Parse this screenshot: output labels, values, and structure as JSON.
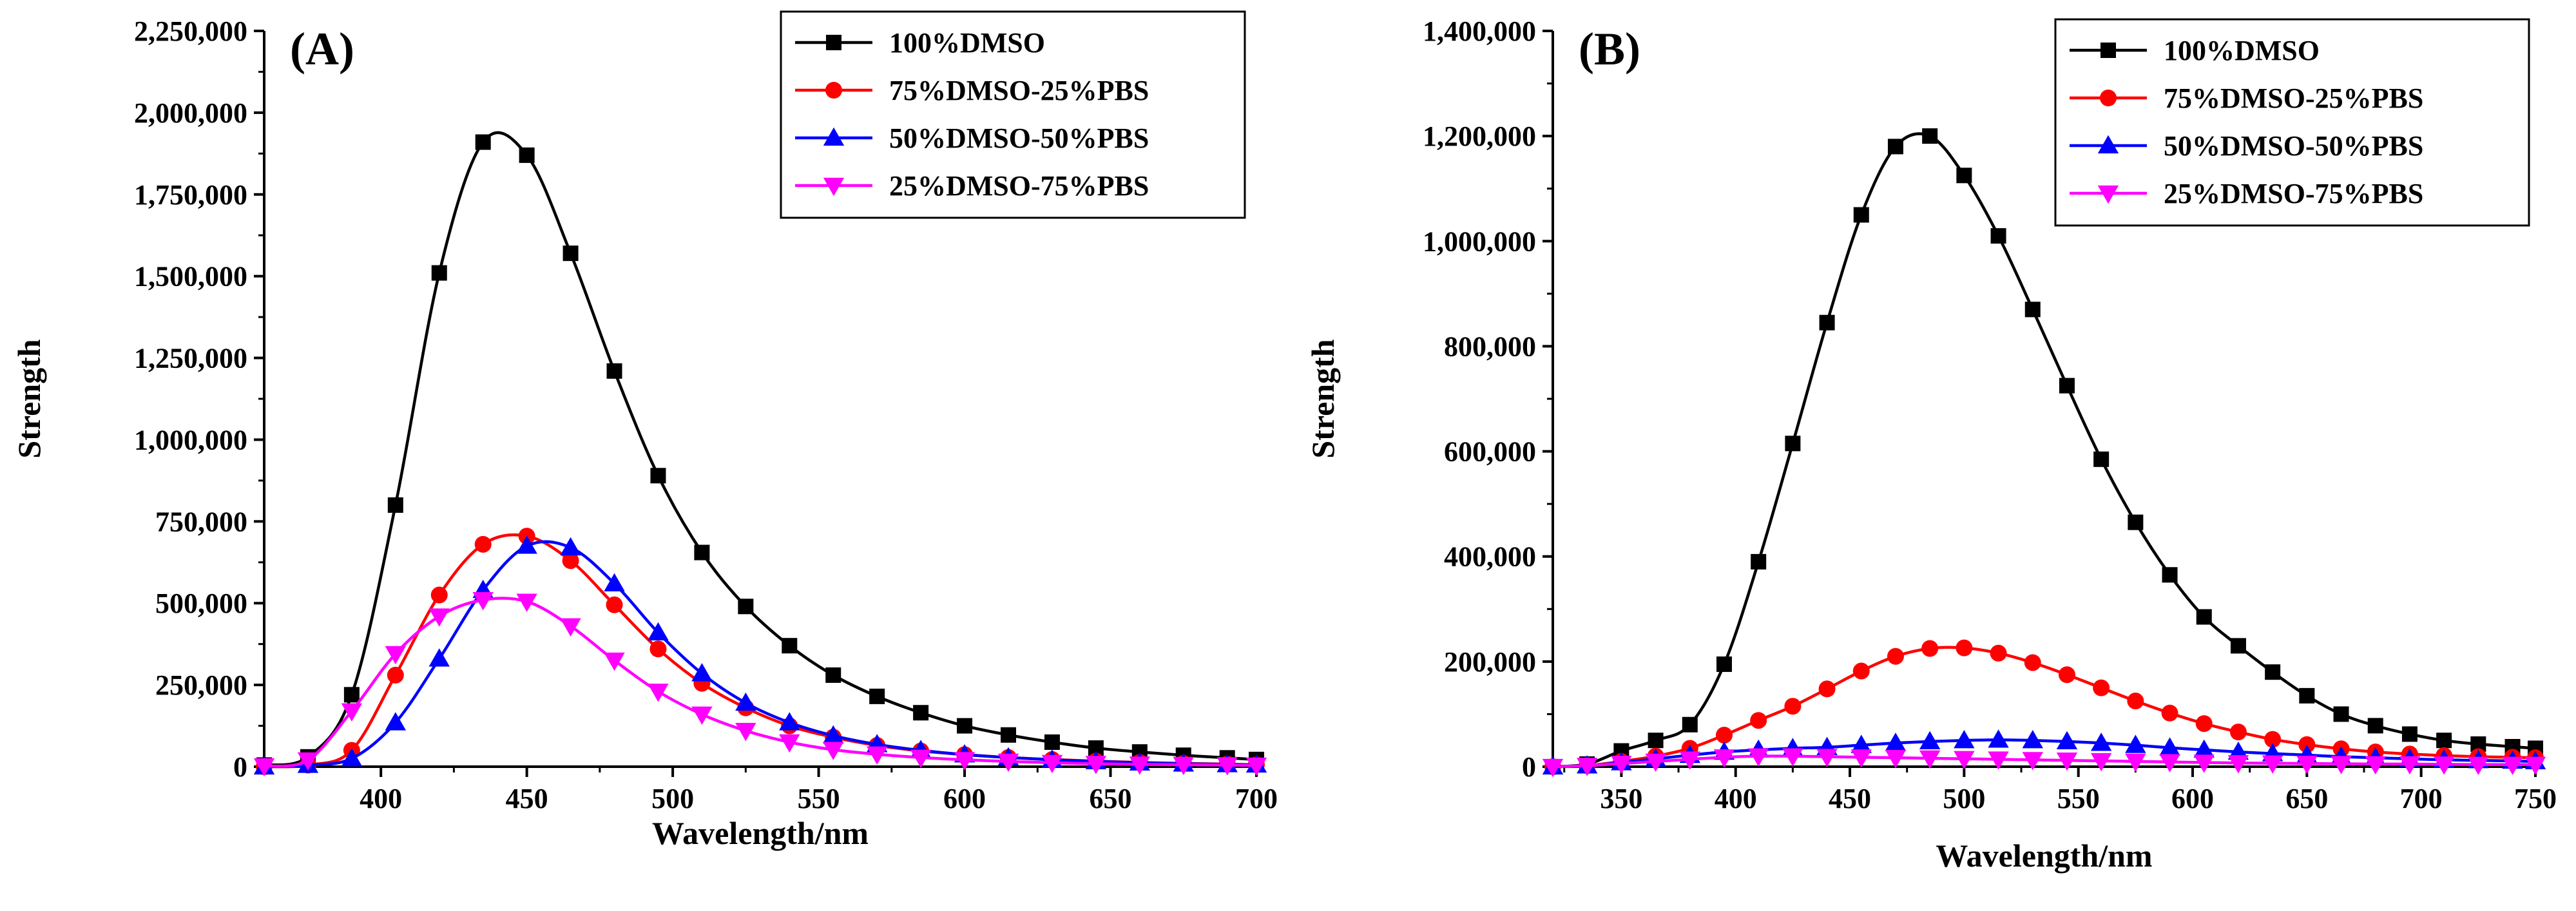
{
  "chart_data": [
    {
      "type": "line",
      "panel": "(A)",
      "xlabel": "Wavelength/nm",
      "ylabel": "Strength",
      "xlim": [
        360,
        700
      ],
      "ylim": [
        0,
        2250000
      ],
      "x_ticks": [
        400,
        450,
        500,
        550,
        600,
        650,
        700
      ],
      "x_tick_labels": [
        "400",
        "450",
        "500",
        "550",
        "600",
        "650",
        "700"
      ],
      "y_ticks": [
        0,
        250000,
        500000,
        750000,
        1000000,
        1250000,
        1500000,
        1750000,
        2000000,
        2250000
      ],
      "y_tick_labels": [
        "0",
        "250,000",
        "500,000",
        "750,000",
        "1,000,000",
        "1,250,000",
        "1,500,000",
        "1,750,000",
        "2,000,000",
        "2,250,000"
      ],
      "legend_position": "top-right",
      "series": [
        {
          "name": "100%DMSO",
          "color": "#000000",
          "marker": "square",
          "x": [
            360,
            375,
            390,
            405,
            420,
            435,
            450,
            465,
            480,
            495,
            510,
            525,
            540,
            555,
            570,
            585,
            600,
            615,
            630,
            645,
            660,
            675,
            690,
            700
          ],
          "y": [
            5000,
            30000,
            220000,
            800000,
            1510000,
            1910000,
            1870000,
            1570000,
            1210000,
            890000,
            655000,
            490000,
            370000,
            280000,
            215000,
            165000,
            125000,
            97000,
            75000,
            57000,
            45000,
            35000,
            27000,
            22000
          ]
        },
        {
          "name": "75%DMSO-25%PBS",
          "color": "#ff0000",
          "marker": "circle",
          "x": [
            360,
            375,
            390,
            405,
            420,
            435,
            450,
            465,
            480,
            495,
            510,
            525,
            540,
            555,
            570,
            585,
            600,
            615,
            630,
            645,
            660,
            675,
            690,
            700
          ],
          "y": [
            0,
            5000,
            50000,
            280000,
            525000,
            680000,
            705000,
            630000,
            495000,
            360000,
            255000,
            180000,
            125000,
            90000,
            65000,
            48000,
            37000,
            28000,
            22000,
            17000,
            13000,
            10000,
            8000,
            6000
          ]
        },
        {
          "name": "50%DMSO-50%PBS",
          "color": "#0000ff",
          "marker": "triangle-up",
          "x": [
            360,
            375,
            390,
            405,
            420,
            435,
            450,
            465,
            480,
            495,
            510,
            525,
            540,
            555,
            570,
            585,
            600,
            615,
            630,
            645,
            660,
            675,
            690,
            700
          ],
          "y": [
            0,
            5000,
            25000,
            135000,
            330000,
            540000,
            675000,
            670000,
            560000,
            410000,
            285000,
            195000,
            135000,
            95000,
            68000,
            50000,
            37000,
            28000,
            21000,
            16000,
            12000,
            9000,
            7000,
            6000
          ]
        },
        {
          "name": "25%DMSO-75%PBS",
          "color": "#ff00ff",
          "marker": "triangle-down",
          "x": [
            360,
            375,
            390,
            405,
            420,
            435,
            450,
            465,
            480,
            495,
            510,
            525,
            540,
            555,
            570,
            585,
            600,
            615,
            630,
            645,
            660,
            675,
            690,
            700
          ],
          "y": [
            2000,
            20000,
            170000,
            345000,
            460000,
            510000,
            505000,
            430000,
            325000,
            230000,
            160000,
            110000,
            75000,
            52000,
            38000,
            28000,
            21000,
            16000,
            12000,
            9000,
            7000,
            6000,
            5000,
            4000
          ]
        }
      ]
    },
    {
      "type": "line",
      "panel": "(B)",
      "xlabel": "Wavelength/nm",
      "ylabel": "Strength",
      "xlim": [
        320,
        750
      ],
      "ylim": [
        0,
        1400000
      ],
      "x_ticks": [
        350,
        400,
        450,
        500,
        550,
        600,
        650,
        700,
        750
      ],
      "x_tick_labels": [
        "350",
        "400",
        "450",
        "500",
        "550",
        "600",
        "650",
        "700",
        "750"
      ],
      "y_ticks": [
        0,
        200000,
        400000,
        600000,
        800000,
        1000000,
        1200000,
        1400000
      ],
      "y_tick_labels": [
        "0",
        "200,000",
        "400,000",
        "600,000",
        "800,000",
        "1,000,000",
        "1,200,000",
        "1,400,000"
      ],
      "legend_position": "top-right",
      "series": [
        {
          "name": "100%DMSO",
          "color": "#000000",
          "marker": "square",
          "x": [
            320,
            335,
            350,
            365,
            380,
            395,
            410,
            425,
            440,
            455,
            470,
            485,
            500,
            515,
            530,
            545,
            560,
            575,
            590,
            605,
            620,
            635,
            650,
            665,
            680,
            695,
            710,
            725,
            740,
            750
          ],
          "y": [
            0,
            5000,
            30000,
            50000,
            80000,
            195000,
            390000,
            615000,
            845000,
            1050000,
            1180000,
            1200000,
            1125000,
            1010000,
            870000,
            725000,
            585000,
            465000,
            365000,
            285000,
            230000,
            180000,
            135000,
            100000,
            78000,
            62000,
            50000,
            43000,
            38000,
            35000
          ]
        },
        {
          "name": "75%DMSO-25%PBS",
          "color": "#ff0000",
          "marker": "circle",
          "x": [
            320,
            335,
            350,
            365,
            380,
            395,
            410,
            425,
            440,
            455,
            470,
            485,
            500,
            515,
            530,
            545,
            560,
            575,
            590,
            605,
            620,
            635,
            650,
            665,
            680,
            695,
            710,
            725,
            740,
            750
          ],
          "y": [
            0,
            2000,
            10000,
            20000,
            35000,
            60000,
            88000,
            115000,
            148000,
            182000,
            210000,
            225000,
            226000,
            216000,
            198000,
            175000,
            150000,
            125000,
            102000,
            82000,
            66000,
            52000,
            42000,
            34000,
            28000,
            24000,
            21000,
            19000,
            18000,
            17000
          ]
        },
        {
          "name": "50%DMSO-50%PBS",
          "color": "#0000ff",
          "marker": "triangle-up",
          "x": [
            320,
            335,
            350,
            365,
            380,
            395,
            410,
            425,
            440,
            455,
            470,
            485,
            500,
            515,
            530,
            545,
            560,
            575,
            590,
            605,
            620,
            635,
            650,
            665,
            680,
            695,
            710,
            725,
            740,
            750
          ],
          "y": [
            0,
            2000,
            8000,
            15000,
            22000,
            28000,
            32000,
            35000,
            37000,
            41000,
            45000,
            48000,
            50000,
            51000,
            50000,
            48000,
            45000,
            41000,
            36000,
            32000,
            28000,
            25000,
            22000,
            19000,
            17000,
            15000,
            13000,
            12000,
            11000,
            10000
          ]
        },
        {
          "name": "25%DMSO-75%PBS",
          "color": "#ff00ff",
          "marker": "triangle-down",
          "x": [
            320,
            335,
            350,
            365,
            380,
            395,
            410,
            425,
            440,
            455,
            470,
            485,
            500,
            515,
            530,
            545,
            560,
            575,
            590,
            605,
            620,
            635,
            650,
            665,
            680,
            695,
            710,
            725,
            740,
            750
          ],
          "y": [
            0,
            2000,
            6000,
            10000,
            14000,
            18000,
            20000,
            20000,
            19000,
            18000,
            17000,
            16000,
            15000,
            14000,
            13000,
            12000,
            11000,
            10000,
            9000,
            8000,
            7000,
            6500,
            6000,
            5500,
            5000,
            5000,
            4500,
            4000,
            4000,
            4000
          ]
        }
      ]
    }
  ]
}
